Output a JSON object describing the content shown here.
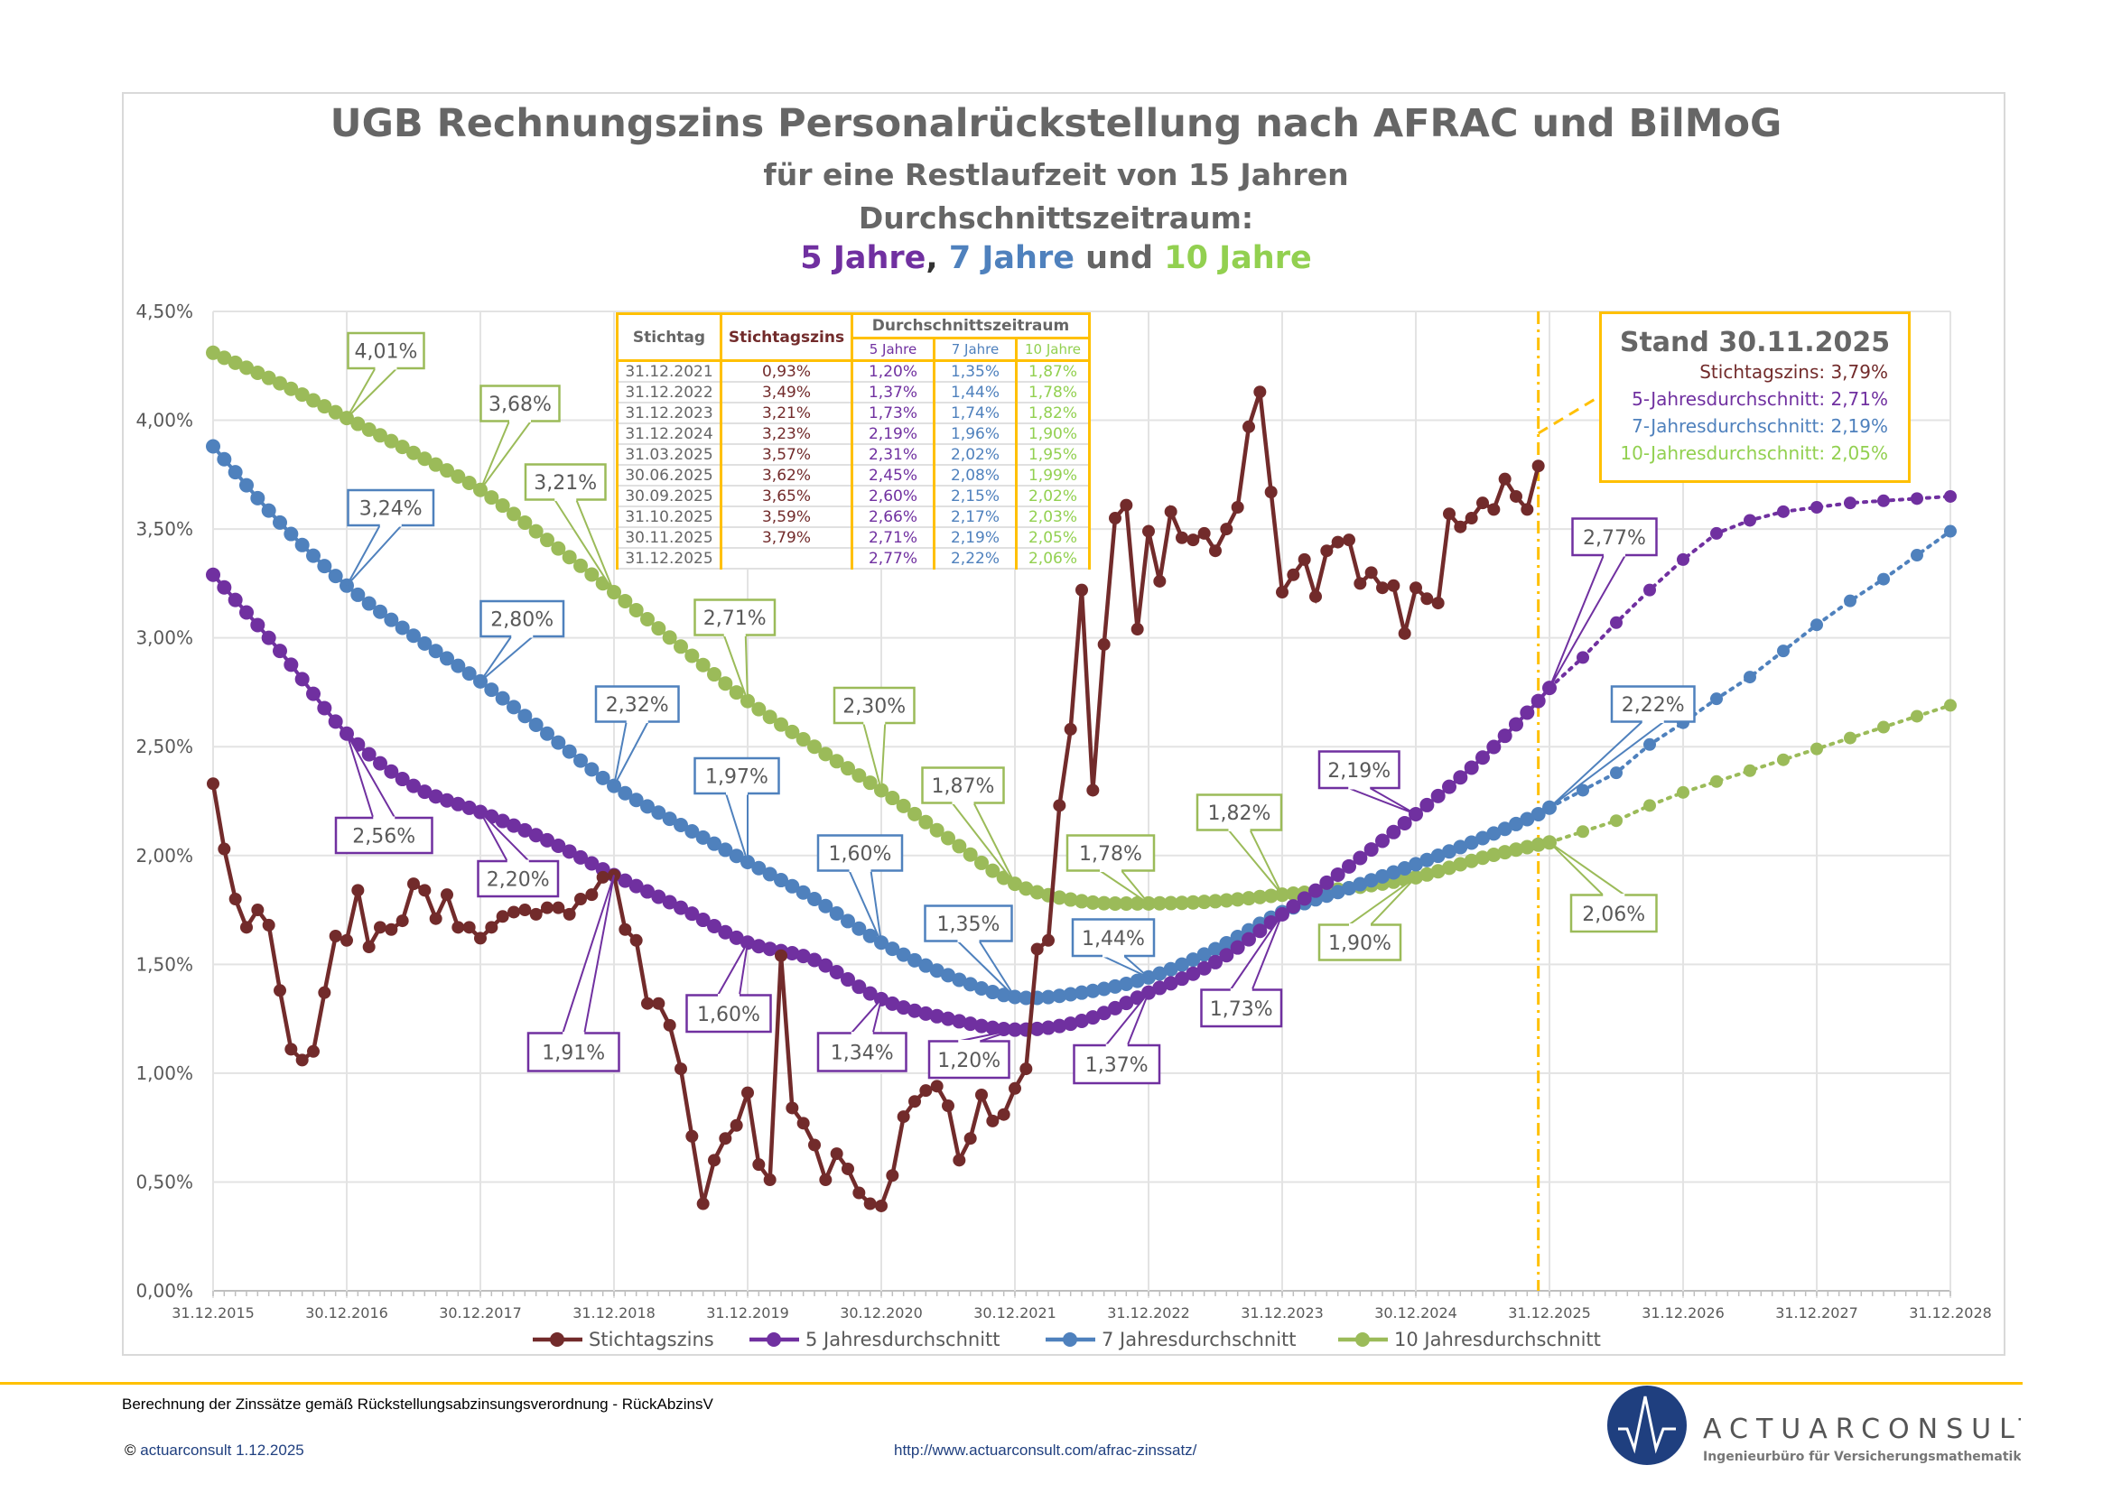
{
  "header": {
    "line1": "UGB Rechnungszins Personalrückstellung nach AFRAC und BilMoG",
    "line2": "für eine Restlaufzeit von 15 Jahren",
    "line3": "Durchschnittszeitraum:",
    "line4": [
      {
        "text": "5 Jahre",
        "color": "#7030a0"
      },
      {
        "text": ", ",
        "color": "#333333"
      },
      {
        "text": "7 Jahre",
        "color": "#4f81bd"
      },
      {
        "text": " und ",
        "color": "#666666"
      },
      {
        "text": "10 Jahre",
        "color": "#92d050"
      }
    ]
  },
  "colors": {
    "stichtag": "#722b2b",
    "y5": "#7030a0",
    "y7": "#4f81bd",
    "y10": "#9bbb59",
    "y10_text": "#92d050",
    "accent": "#ffc000",
    "title": "#666666"
  },
  "table": {
    "headers": {
      "stichtag": "Stichtag",
      "zins": "Stichtagszins",
      "group": "Durchschnittszeitraum",
      "y5": "5 Jahre",
      "y7": "7 Jahre",
      "y10": "10 Jahre"
    },
    "rows": [
      [
        "31.12.2021",
        "0,93%",
        "1,20%",
        "1,35%",
        "1,87%"
      ],
      [
        "31.12.2022",
        "3,49%",
        "1,37%",
        "1,44%",
        "1,78%"
      ],
      [
        "31.12.2023",
        "3,21%",
        "1,73%",
        "1,74%",
        "1,82%"
      ],
      [
        "31.12.2024",
        "3,23%",
        "2,19%",
        "1,96%",
        "1,90%"
      ],
      [
        "31.03.2025",
        "3,57%",
        "2,31%",
        "2,02%",
        "1,95%"
      ],
      [
        "30.06.2025",
        "3,62%",
        "2,45%",
        "2,08%",
        "1,99%"
      ],
      [
        "30.09.2025",
        "3,65%",
        "2,60%",
        "2,15%",
        "2,02%"
      ],
      [
        "31.10.2025",
        "3,59%",
        "2,66%",
        "2,17%",
        "2,03%"
      ],
      [
        "30.11.2025",
        "3,79%",
        "2,71%",
        "2,19%",
        "2,05%"
      ],
      [
        "31.12.2025",
        "",
        "2,77%",
        "2,22%",
        "2,06%"
      ]
    ]
  },
  "stand": {
    "title": "Stand 30.11.2025",
    "lines": [
      "Stichtagszins: 3,79%",
      "5-Jahresdurchschnitt: 2,71%",
      "7-Jahresdurchschnitt: 2,19%",
      "10-Jahresdurchschnitt: 2,05%"
    ]
  },
  "chart_data": {
    "type": "line",
    "ylim": [
      0,
      4.5
    ],
    "xlim": [
      "2015-12",
      "2028-12"
    ],
    "y_ticks": [
      "0,00%",
      "0,50%",
      "1,00%",
      "1,50%",
      "2,00%",
      "2,50%",
      "3,00%",
      "3,50%",
      "4,00%",
      "4,50%"
    ],
    "x_ticks": [
      "31.12.2015",
      "30.12.2016",
      "30.12.2017",
      "31.12.2018",
      "31.12.2019",
      "30.12.2020",
      "30.12.2021",
      "31.12.2022",
      "31.12.2023",
      "30.12.2024",
      "31.12.2025",
      "31.12.2026",
      "31.12.2027",
      "31.12.2028"
    ],
    "grid": true,
    "legend_position": "bottom",
    "marker_date": "2025-11",
    "series": [
      {
        "name": "Stichtagszins",
        "key": "stichtag",
        "start": "2015-12",
        "frequency": "monthly",
        "values": [
          2.33,
          2.03,
          1.8,
          1.67,
          1.75,
          1.68,
          1.38,
          1.11,
          1.06,
          1.1,
          1.37,
          1.63,
          1.61,
          1.84,
          1.58,
          1.67,
          1.66,
          1.7,
          1.87,
          1.84,
          1.71,
          1.82,
          1.67,
          1.67,
          1.62,
          1.67,
          1.72,
          1.74,
          1.75,
          1.73,
          1.76,
          1.76,
          1.73,
          1.8,
          1.82,
          1.9,
          1.91,
          1.66,
          1.61,
          1.32,
          1.32,
          1.22,
          1.02,
          0.71,
          0.4,
          0.6,
          0.7,
          0.76,
          0.91,
          0.58,
          0.51,
          1.54,
          0.84,
          0.77,
          0.67,
          0.51,
          0.63,
          0.56,
          0.45,
          0.4,
          0.39,
          0.53,
          0.8,
          0.87,
          0.92,
          0.94,
          0.85,
          0.6,
          0.7,
          0.9,
          0.78,
          0.81,
          0.93,
          1.02,
          1.57,
          1.61,
          2.23,
          2.58,
          3.22,
          2.3,
          2.97,
          3.55,
          3.61,
          3.04,
          3.49,
          3.26,
          3.58,
          3.46,
          3.45,
          3.48,
          3.4,
          3.5,
          3.6,
          3.97,
          4.13,
          3.67,
          3.21,
          3.29,
          3.36,
          3.19,
          3.4,
          3.44,
          3.45,
          3.25,
          3.3,
          3.23,
          3.24,
          3.02,
          3.23,
          3.18,
          3.16,
          3.57,
          3.51,
          3.55,
          3.62,
          3.59,
          3.73,
          3.65,
          3.59,
          3.79
        ]
      },
      {
        "name": "5 Jahresdurchschnitt",
        "key": "y5",
        "points": [
          [
            "2015-12",
            3.29
          ],
          [
            "2016-06",
            2.94
          ],
          [
            "2016-12",
            2.56
          ],
          [
            "2017-06",
            2.32
          ],
          [
            "2017-12",
            2.2
          ],
          [
            "2018-06",
            2.07
          ],
          [
            "2018-12",
            1.91
          ],
          [
            "2019-06",
            1.76
          ],
          [
            "2019-12",
            1.6
          ],
          [
            "2020-06",
            1.52
          ],
          [
            "2020-12",
            1.34
          ],
          [
            "2021-06",
            1.25
          ],
          [
            "2021-12",
            1.2
          ],
          [
            "2022-06",
            1.24
          ],
          [
            "2022-12",
            1.37
          ],
          [
            "2023-06",
            1.51
          ],
          [
            "2023-12",
            1.73
          ],
          [
            "2024-06",
            1.95
          ],
          [
            "2024-12",
            2.19
          ],
          [
            "2025-06",
            2.45
          ],
          [
            "2025-11",
            2.71
          ],
          [
            "2025-12",
            2.77
          ]
        ],
        "forecast": [
          [
            "2025-12",
            2.77
          ],
          [
            "2026-03",
            2.91
          ],
          [
            "2026-06",
            3.07
          ],
          [
            "2026-09",
            3.22
          ],
          [
            "2026-12",
            3.36
          ],
          [
            "2027-03",
            3.48
          ],
          [
            "2027-06",
            3.54
          ],
          [
            "2027-09",
            3.58
          ],
          [
            "2027-12",
            3.6
          ],
          [
            "2028-03",
            3.62
          ],
          [
            "2028-06",
            3.63
          ],
          [
            "2028-09",
            3.64
          ],
          [
            "2028-12",
            3.65
          ]
        ]
      },
      {
        "name": "7 Jahresdurchschnitt",
        "key": "y7",
        "points": [
          [
            "2015-12",
            3.88
          ],
          [
            "2016-06",
            3.53
          ],
          [
            "2016-12",
            3.24
          ],
          [
            "2017-06",
            3.01
          ],
          [
            "2017-12",
            2.8
          ],
          [
            "2018-06",
            2.56
          ],
          [
            "2018-12",
            2.32
          ],
          [
            "2019-06",
            2.14
          ],
          [
            "2019-12",
            1.97
          ],
          [
            "2020-06",
            1.8
          ],
          [
            "2020-12",
            1.6
          ],
          [
            "2021-06",
            1.45
          ],
          [
            "2021-12",
            1.35
          ],
          [
            "2022-06",
            1.37
          ],
          [
            "2022-12",
            1.44
          ],
          [
            "2023-06",
            1.57
          ],
          [
            "2023-12",
            1.74
          ],
          [
            "2024-06",
            1.85
          ],
          [
            "2024-12",
            1.96
          ],
          [
            "2025-06",
            2.08
          ],
          [
            "2025-11",
            2.19
          ],
          [
            "2025-12",
            2.22
          ]
        ],
        "forecast": [
          [
            "2025-12",
            2.22
          ],
          [
            "2026-03",
            2.3
          ],
          [
            "2026-06",
            2.38
          ],
          [
            "2026-09",
            2.51
          ],
          [
            "2026-12",
            2.61
          ],
          [
            "2027-03",
            2.72
          ],
          [
            "2027-06",
            2.82
          ],
          [
            "2027-09",
            2.94
          ],
          [
            "2027-12",
            3.06
          ],
          [
            "2028-03",
            3.17
          ],
          [
            "2028-06",
            3.27
          ],
          [
            "2028-09",
            3.38
          ],
          [
            "2028-12",
            3.49
          ]
        ]
      },
      {
        "name": "10 Jahresdurchschnitt",
        "key": "y10",
        "points": [
          [
            "2015-12",
            4.31
          ],
          [
            "2016-06",
            4.17
          ],
          [
            "2016-12",
            4.01
          ],
          [
            "2017-06",
            3.85
          ],
          [
            "2017-12",
            3.68
          ],
          [
            "2018-06",
            3.45
          ],
          [
            "2018-12",
            3.21
          ],
          [
            "2019-06",
            2.96
          ],
          [
            "2019-12",
            2.71
          ],
          [
            "2020-06",
            2.5
          ],
          [
            "2020-12",
            2.3
          ],
          [
            "2021-06",
            2.08
          ],
          [
            "2021-12",
            1.87
          ],
          [
            "2022-06",
            1.79
          ],
          [
            "2022-12",
            1.78
          ],
          [
            "2023-06",
            1.79
          ],
          [
            "2023-12",
            1.82
          ],
          [
            "2024-06",
            1.85
          ],
          [
            "2024-12",
            1.9
          ],
          [
            "2025-06",
            1.99
          ],
          [
            "2025-11",
            2.05
          ],
          [
            "2025-12",
            2.06
          ]
        ],
        "forecast": [
          [
            "2025-12",
            2.06
          ],
          [
            "2026-03",
            2.11
          ],
          [
            "2026-06",
            2.16
          ],
          [
            "2026-09",
            2.23
          ],
          [
            "2026-12",
            2.29
          ],
          [
            "2027-03",
            2.34
          ],
          [
            "2027-06",
            2.39
          ],
          [
            "2027-09",
            2.44
          ],
          [
            "2027-12",
            2.49
          ],
          [
            "2028-03",
            2.54
          ],
          [
            "2028-06",
            2.59
          ],
          [
            "2028-09",
            2.64
          ],
          [
            "2028-12",
            2.69
          ]
        ]
      }
    ],
    "annotations": [
      {
        "series": "y10",
        "date": "2016-12",
        "label": "4,01%"
      },
      {
        "series": "y10",
        "date": "2017-12",
        "label": "3,68%"
      },
      {
        "series": "y10",
        "date": "2018-12",
        "label": "3,21%"
      },
      {
        "series": "y10",
        "date": "2019-12",
        "label": "2,71%"
      },
      {
        "series": "y10",
        "date": "2020-12",
        "label": "2,30%"
      },
      {
        "series": "y10",
        "date": "2021-12",
        "label": "1,87%"
      },
      {
        "series": "y10",
        "date": "2022-12",
        "label": "1,78%"
      },
      {
        "series": "y10",
        "date": "2023-12",
        "label": "1,82%"
      },
      {
        "series": "y10",
        "date": "2024-12",
        "label": "1,90%"
      },
      {
        "series": "y10",
        "date": "2025-12",
        "label": "2,06%"
      },
      {
        "series": "y7",
        "date": "2016-12",
        "label": "3,24%"
      },
      {
        "series": "y7",
        "date": "2017-12",
        "label": "2,80%"
      },
      {
        "series": "y7",
        "date": "2018-12",
        "label": "2,32%"
      },
      {
        "series": "y7",
        "date": "2019-12",
        "label": "1,97%"
      },
      {
        "series": "y7",
        "date": "2020-12",
        "label": "1,60%"
      },
      {
        "series": "y7",
        "date": "2021-12",
        "label": "1,35%"
      },
      {
        "series": "y7",
        "date": "2022-12",
        "label": "1,44%"
      },
      {
        "series": "y7",
        "date": "2025-12",
        "label": "2,22%"
      },
      {
        "series": "y5",
        "date": "2016-12",
        "label": "2,56%"
      },
      {
        "series": "y5",
        "date": "2017-12",
        "label": "2,20%"
      },
      {
        "series": "y5",
        "date": "2018-12",
        "label": "1,91%"
      },
      {
        "series": "y5",
        "date": "2019-12",
        "label": "1,60%"
      },
      {
        "series": "y5",
        "date": "2020-12",
        "label": "1,34%"
      },
      {
        "series": "y5",
        "date": "2021-12",
        "label": "1,20%"
      },
      {
        "series": "y5",
        "date": "2022-12",
        "label": "1,37%"
      },
      {
        "series": "y5",
        "date": "2023-12",
        "label": "1,73%"
      },
      {
        "series": "y5",
        "date": "2024-12",
        "label": "2,19%"
      },
      {
        "series": "y5",
        "date": "2025-12",
        "label": "2,77%"
      }
    ]
  },
  "footer": {
    "note": "Berechnung der Zinssätze gemäß Rückstellungsabzinsungsverordnung - RückAbzinsV",
    "copyright_symbol": "©",
    "copyright": "actuarconsult 1.12.2025",
    "url": "http://www.actuarconsult.com/afrac-zinssatz/",
    "logo_name": "ACTUARCONSULT",
    "logo_sub": "Ingenieurbüro für Versicherungsmathematik",
    "logo_color": "#1f3f7f"
  }
}
